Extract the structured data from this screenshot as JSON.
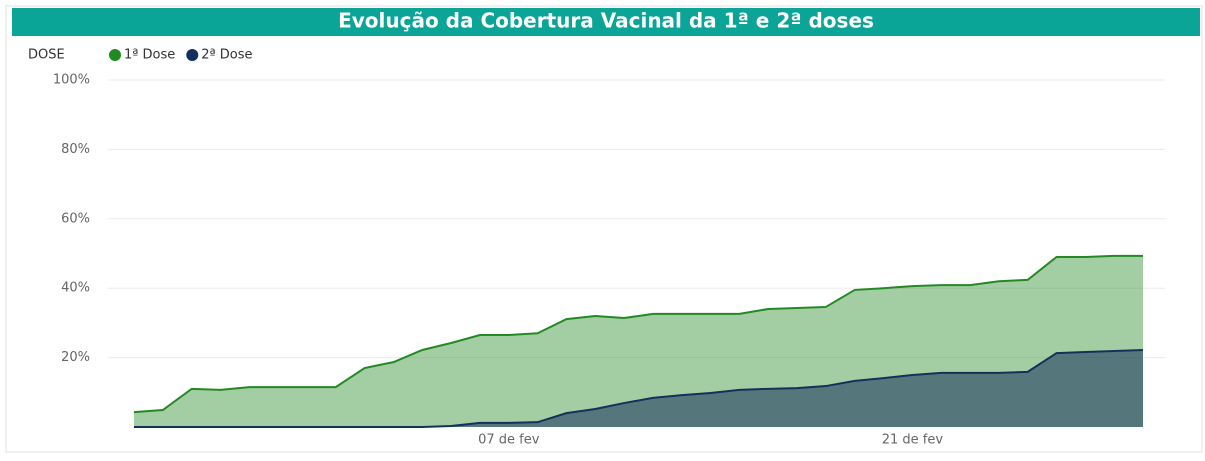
{
  "chart_data": {
    "type": "area",
    "title": "Evolução da Cobertura Vacinal da 1ª e 2ª doses",
    "legend_title": "DOSE",
    "legend": "top-left",
    "grid": true,
    "categories": [
      null,
      null,
      null,
      null,
      null,
      null,
      null,
      null,
      null,
      null,
      null,
      null,
      null,
      "07 de fev",
      null,
      null,
      null,
      null,
      null,
      null,
      null,
      null,
      null,
      null,
      null,
      null,
      null,
      "21 de fev",
      null,
      null,
      null,
      null,
      null,
      null,
      null,
      null
    ],
    "series": [
      {
        "name": "1ª Dose",
        "color": "#238a23",
        "values": [
          4.3,
          4.9,
          11,
          10.7,
          11.5,
          11.5,
          11.5,
          11.5,
          17,
          18.7,
          22.2,
          24.2,
          26.5,
          26.5,
          27,
          31.1,
          32,
          31.4,
          32.6,
          32.6,
          32.6,
          32.6,
          34,
          34.3,
          34.6,
          39.5,
          40,
          40.6,
          40.9,
          40.9,
          42,
          42.4,
          49,
          49,
          49.3,
          49.3
        ]
      },
      {
        "name": "2ª Dose",
        "color": "#16305c",
        "values": [
          0,
          0,
          0,
          0,
          0,
          0,
          0,
          0,
          0,
          0,
          0,
          0.3,
          1.2,
          1.2,
          1.4,
          4,
          5.2,
          6.9,
          8.4,
          9.2,
          9.8,
          10.7,
          11,
          11.2,
          11.8,
          13.3,
          14.1,
          15,
          15.6,
          15.6,
          15.6,
          15.9,
          21.3,
          21.6,
          21.9,
          22.2
        ]
      }
    ],
    "ylim": [
      0,
      100
    ],
    "yticks": [
      {
        "value": 20,
        "label": "20%"
      },
      {
        "value": 40,
        "label": "40%"
      },
      {
        "value": 60,
        "label": "60%"
      },
      {
        "value": 80,
        "label": "80%"
      },
      {
        "value": 100,
        "label": "100%"
      }
    ]
  }
}
